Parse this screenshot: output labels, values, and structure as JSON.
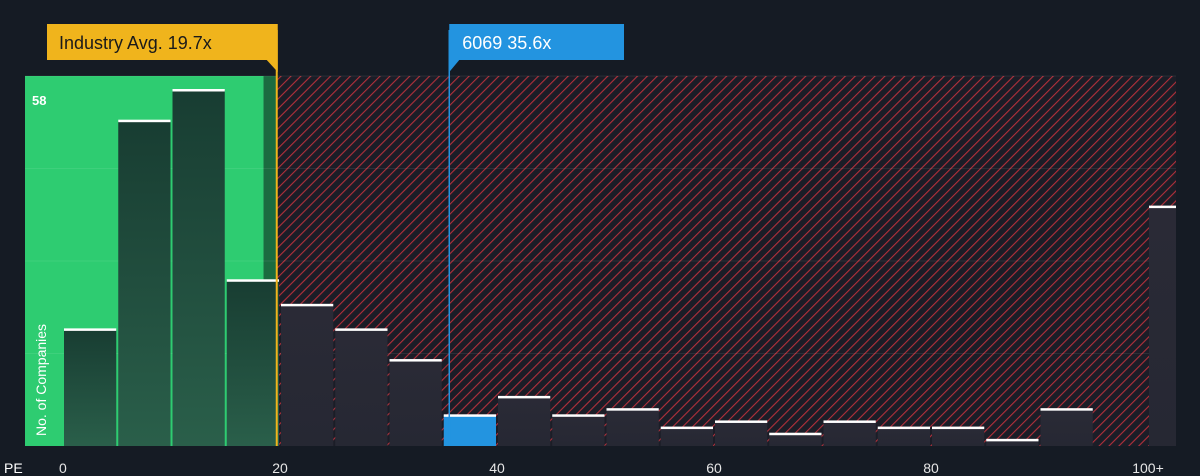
{
  "chart_data": {
    "type": "histogram",
    "x_axis_name": "PE",
    "ylabel": "No. of Companies",
    "y_max_label": "58",
    "xlim": [
      0,
      102
    ],
    "ylim": [
      0,
      60
    ],
    "bin_width": 5,
    "x_ticks": [
      {
        "value": 0,
        "label": "0"
      },
      {
        "value": 20,
        "label": "20"
      },
      {
        "value": 40,
        "label": "40"
      },
      {
        "value": 60,
        "label": "60"
      },
      {
        "value": 80,
        "label": "80"
      },
      {
        "value": 100,
        "label": "100+"
      }
    ],
    "bins": [
      {
        "start": 0,
        "count": 19
      },
      {
        "start": 5,
        "count": 53
      },
      {
        "start": 10,
        "count": 58
      },
      {
        "start": 15,
        "count": 27
      },
      {
        "start": 20,
        "count": 23
      },
      {
        "start": 25,
        "count": 19
      },
      {
        "start": 30,
        "count": 14
      },
      {
        "start": 35,
        "count": 5
      },
      {
        "start": 40,
        "count": 8
      },
      {
        "start": 45,
        "count": 5
      },
      {
        "start": 50,
        "count": 6
      },
      {
        "start": 55,
        "count": 3
      },
      {
        "start": 60,
        "count": 4
      },
      {
        "start": 65,
        "count": 2
      },
      {
        "start": 70,
        "count": 4
      },
      {
        "start": 75,
        "count": 3
      },
      {
        "start": 80,
        "count": 3
      },
      {
        "start": 85,
        "count": 1
      },
      {
        "start": 90,
        "count": 6
      },
      {
        "start": 100,
        "count": 39
      }
    ],
    "industry_avg": {
      "value": 19.7,
      "label": "Industry Avg. 19.7x"
    },
    "company": {
      "value": 35.6,
      "label": "6069 35.6x"
    },
    "colors": {
      "background": "#151b24",
      "fair_zone": "#2ecc71",
      "overvalued_hatch": "#c0303a",
      "industry": "#f0b41c",
      "company": "#2394e0",
      "bar_cap": "#ffffff"
    }
  }
}
